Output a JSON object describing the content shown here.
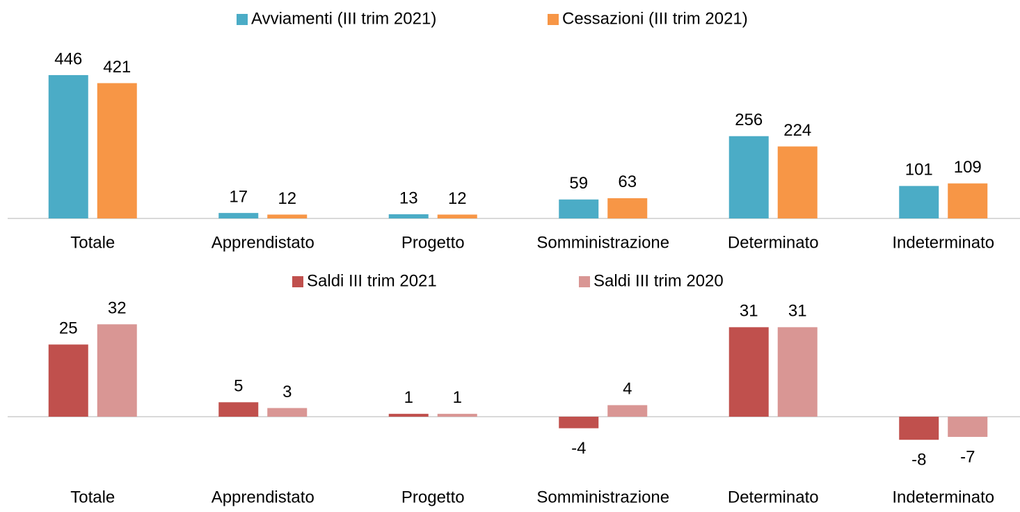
{
  "chart_data": [
    {
      "type": "bar",
      "categories": [
        "Totale",
        "Apprendistato",
        "Progetto",
        "Somministrazione",
        "Determinato",
        "Indeterminato"
      ],
      "series": [
        {
          "name": "Avviamenti (III trim 2021)",
          "color": "#4bacc6",
          "values": [
            446,
            17,
            13,
            59,
            256,
            101
          ]
        },
        {
          "name": "Cessazioni (III trim 2021)",
          "color": "#f79646",
          "values": [
            421,
            12,
            12,
            63,
            224,
            109
          ]
        }
      ],
      "ylim": [
        0,
        500
      ],
      "legend": "top"
    },
    {
      "type": "bar",
      "categories": [
        "Totale",
        "Apprendistato",
        "Progetto",
        "Somministrazione",
        "Determinato",
        "Indeterminato"
      ],
      "series": [
        {
          "name": "Saldi III trim 2021",
          "color": "#c0504d",
          "values": [
            25,
            5,
            1,
            -4,
            31,
            -8
          ]
        },
        {
          "name": "Saldi III trim 2020",
          "color": "#d99694",
          "values": [
            32,
            3,
            1,
            4,
            31,
            -7
          ]
        }
      ],
      "ylim": [
        -20,
        40
      ],
      "legend": "top"
    }
  ]
}
